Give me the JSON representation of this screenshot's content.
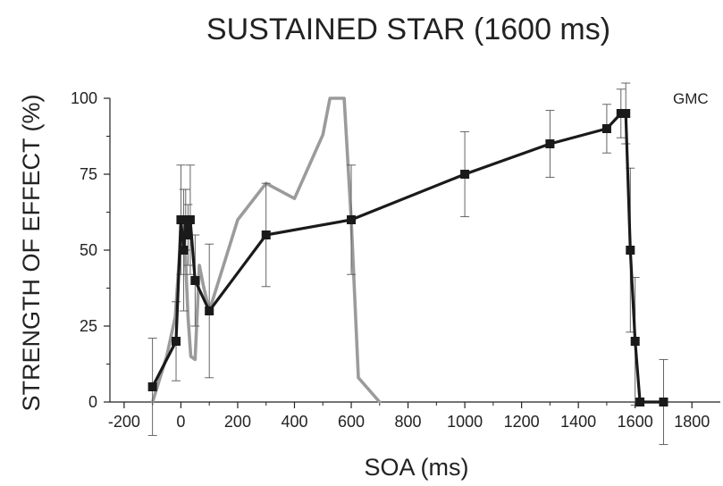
{
  "chart_data": {
    "type": "line",
    "title": "SUSTAINED STAR (1600 ms)",
    "xlabel": "SOA (ms)",
    "ylabel": "STRENGTH OF EFFECT (%)",
    "annotation": "GMC",
    "xlim": [
      -250,
      1900
    ],
    "ylim": [
      0,
      100
    ],
    "x_ticks": [
      -200,
      0,
      200,
      400,
      600,
      800,
      1000,
      1200,
      1400,
      1600,
      1800
    ],
    "y_ticks": [
      0,
      25,
      50,
      75,
      100
    ],
    "grid": false,
    "series": [
      {
        "color": "#9b9b9b",
        "marker": "none",
        "points": [
          {
            "x": -100,
            "y": 0
          },
          {
            "x": -50,
            "y": 15
          },
          {
            "x": -20,
            "y": 28
          },
          {
            "x": 0,
            "y": 55
          },
          {
            "x": 15,
            "y": 50
          },
          {
            "x": 25,
            "y": 28
          },
          {
            "x": 35,
            "y": 15
          },
          {
            "x": 50,
            "y": 14
          },
          {
            "x": 65,
            "y": 45
          },
          {
            "x": 80,
            "y": 38
          },
          {
            "x": 100,
            "y": 30
          },
          {
            "x": 200,
            "y": 60
          },
          {
            "x": 300,
            "y": 72
          },
          {
            "x": 400,
            "y": 67
          },
          {
            "x": 500,
            "y": 88
          },
          {
            "x": 525,
            "y": 100
          },
          {
            "x": 575,
            "y": 100
          },
          {
            "x": 600,
            "y": 60
          },
          {
            "x": 625,
            "y": 8
          },
          {
            "x": 700,
            "y": 0
          }
        ]
      },
      {
        "color": "#1a1a1a",
        "marker": "square",
        "points": [
          {
            "x": -100,
            "y": 5,
            "err": 16
          },
          {
            "x": -17,
            "y": 20,
            "err": 13
          },
          {
            "x": 0,
            "y": 60,
            "err": 18
          },
          {
            "x": 10,
            "y": 50,
            "err": 20
          },
          {
            "x": 17,
            "y": 60,
            "err": 10
          },
          {
            "x": 25,
            "y": 55,
            "err": 10
          },
          {
            "x": 33,
            "y": 60,
            "err": 18
          },
          {
            "x": 50,
            "y": 40,
            "err": 15
          },
          {
            "x": 100,
            "y": 30,
            "err": 22
          },
          {
            "x": 300,
            "y": 55,
            "err": 17
          },
          {
            "x": 600,
            "y": 60,
            "err": 18
          },
          {
            "x": 1000,
            "y": 75,
            "err": 14
          },
          {
            "x": 1300,
            "y": 85,
            "err": 11
          },
          {
            "x": 1500,
            "y": 90,
            "err": 8
          },
          {
            "x": 1550,
            "y": 95,
            "err": 8
          },
          {
            "x": 1567,
            "y": 95,
            "err": 10
          },
          {
            "x": 1583,
            "y": 50,
            "err": 27
          },
          {
            "x": 1600,
            "y": 20,
            "err": 21
          },
          {
            "x": 1617,
            "y": 0,
            "err": 0
          },
          {
            "x": 1700,
            "y": 0,
            "err": 14
          }
        ]
      }
    ]
  }
}
